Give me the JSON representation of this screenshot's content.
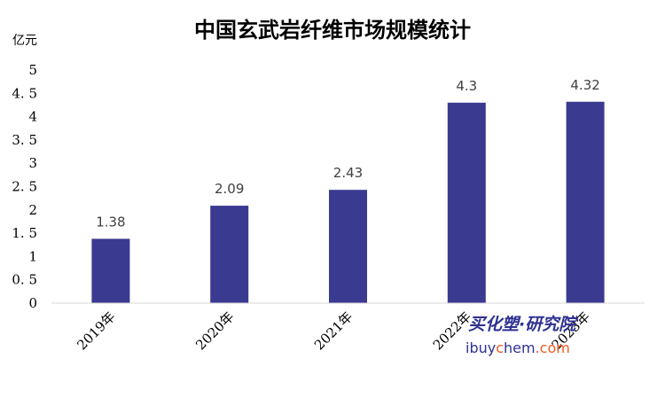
{
  "chart_data": {
    "type": "bar",
    "title": "中国玄武岩纤维市场规模统计",
    "unit_label": "亿元",
    "categories": [
      "2019年",
      "2020年",
      "2021年",
      "2022年",
      "2023年"
    ],
    "values": [
      1.38,
      2.09,
      2.43,
      4.3,
      4.32
    ],
    "data_labels": [
      "1.38",
      "2.09",
      "2.43",
      "4.3",
      "4.32"
    ],
    "yticks": [
      "0",
      "0. 5",
      "1",
      "1. 5",
      "2",
      "2. 5",
      "3",
      "3. 5",
      "4",
      "4. 5",
      "5"
    ],
    "ylim": [
      0,
      5
    ],
    "bar_color": "#3b3a91",
    "grid": false,
    "legend": "none"
  },
  "watermark": {
    "line1": "买化塑·研究院",
    "line2_a": "ibuy",
    "line2_b": "c",
    "line2_c": "hem",
    "line2_d": ".com",
    "color_dark": "#2e3192",
    "color_accent": "#f15a24"
  }
}
